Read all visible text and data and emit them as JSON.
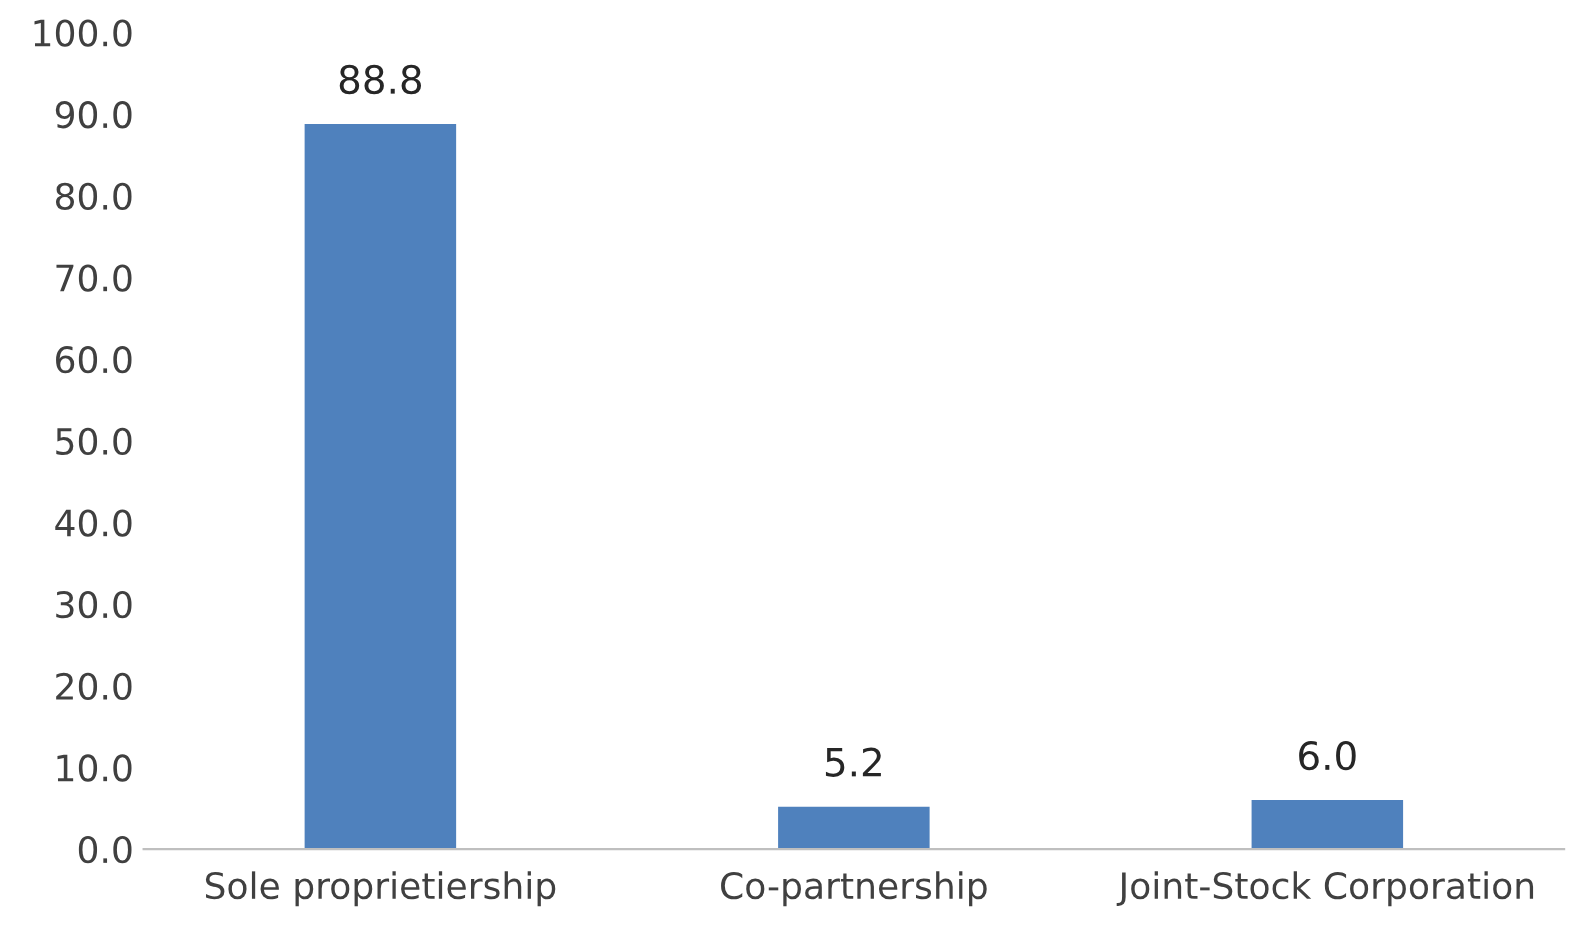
{
  "chart_data": {
    "type": "bar",
    "categories": [
      "Sole proprietiership",
      "Co-partnership",
      "Joint-Stock Corporation"
    ],
    "values": [
      88.8,
      5.2,
      6.0
    ],
    "value_labels": [
      "88.8",
      "5.2",
      "6.0"
    ],
    "color": "#4f81bd",
    "ylim": [
      0,
      100
    ],
    "yticks": [
      {
        "value": 0,
        "label": "0.0"
      },
      {
        "value": 10,
        "label": "10.0"
      },
      {
        "value": 20,
        "label": "20.0"
      },
      {
        "value": 30,
        "label": "30.0"
      },
      {
        "value": 40,
        "label": "40.0"
      },
      {
        "value": 50,
        "label": "50.0"
      },
      {
        "value": 60,
        "label": "60.0"
      },
      {
        "value": 70,
        "label": "70.0"
      },
      {
        "value": 80,
        "label": "80.0"
      },
      {
        "value": 90,
        "label": "90.0"
      },
      {
        "value": 100,
        "label": "100.0"
      }
    ],
    "grid": false,
    "legend": false
  }
}
